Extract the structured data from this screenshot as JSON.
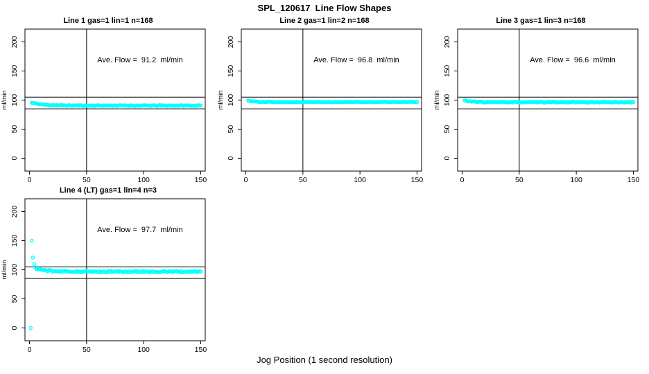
{
  "page": {
    "title": "SPL_120617  Line Flow Shapes",
    "xlabel": "Jog Position (1 second resolution)",
    "background": "#ffffff"
  },
  "chart_data": {
    "type": "scatter",
    "title": "SPL_120617  Line Flow Shapes",
    "xlabel": "Jog Position (1 second resolution)",
    "ylabel": "ml/min",
    "point_color": "#00ffff",
    "axis_color": "#000000",
    "grid": false,
    "xlim": [
      -4,
      154
    ],
    "ylim": [
      -22,
      222
    ],
    "x_ticks": [
      0,
      50,
      100,
      150
    ],
    "y_ticks": [
      0,
      50,
      100,
      150,
      200
    ],
    "ref_lines": {
      "horizontal": [
        105,
        85
      ],
      "vertical": [
        50
      ]
    },
    "panels": [
      {
        "title": "Line 1 gas=1 lin=1 n=168",
        "annotation": "Ave. Flow =  91.2  ml/min",
        "avg_flow_ml_min": 91.2,
        "n": 168,
        "series": {
          "x_start": 2,
          "x_end": 150,
          "start": 95.5,
          "settle": 90.5,
          "tau": 10,
          "noise": 0.8,
          "seed": 11
        },
        "outliers": []
      },
      {
        "title": "Line 2 gas=1 lin=2 n=168",
        "annotation": "Ave. Flow =  96.8  ml/min",
        "avg_flow_ml_min": 96.8,
        "n": 168,
        "series": {
          "x_start": 2,
          "x_end": 150,
          "start": 99.2,
          "settle": 96.7,
          "tau": 6,
          "noise": 0.55,
          "seed": 22
        },
        "outliers": []
      },
      {
        "title": "Line 3 gas=1 lin=3 n=168",
        "annotation": "Ave. Flow =  96.6  ml/min",
        "avg_flow_ml_min": 96.6,
        "n": 168,
        "series": {
          "x_start": 2,
          "x_end": 150,
          "start": 99.5,
          "settle": 96.4,
          "tau": 6,
          "noise": 0.8,
          "seed": 33
        },
        "outliers": []
      },
      {
        "title": "Line 4 (LT) gas=1 lin=4 n=3",
        "annotation": "Ave. Flow =  97.7  ml/min",
        "avg_flow_ml_min": 97.7,
        "n": 3,
        "series": {
          "x_start": 5,
          "x_end": 150,
          "start": 103,
          "settle": 96.8,
          "tau": 9,
          "noise": 1.4,
          "seed": 44
        },
        "outliers": [
          [
            1,
            0
          ],
          [
            2,
            150
          ],
          [
            3,
            121
          ],
          [
            4,
            110
          ]
        ]
      }
    ]
  }
}
